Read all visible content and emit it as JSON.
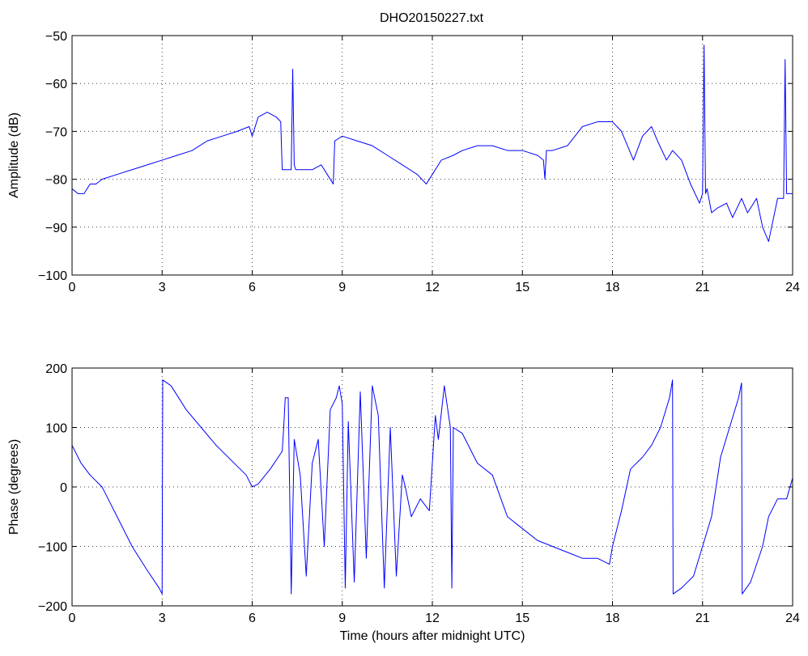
{
  "title": "DHO20150227.txt",
  "chart_data": [
    {
      "type": "line",
      "title": "DHO20150227.txt",
      "xlabel": "",
      "ylabel": "Amplitude (dB)",
      "xlim": [
        0,
        24
      ],
      "ylim": [
        -100,
        -50
      ],
      "xticks": [
        0,
        3,
        6,
        9,
        12,
        15,
        18,
        21,
        24
      ],
      "yticks": [
        -100,
        -90,
        -80,
        -70,
        -60,
        -50
      ],
      "grid": true,
      "line_color": "#0000ff",
      "series": [
        {
          "x": [
            0,
            0.2,
            0.4,
            0.6,
            0.8,
            1.0,
            1.5,
            2.0,
            2.5,
            3.0,
            3.5,
            4.0,
            4.5,
            5.0,
            5.5,
            5.9,
            6.0,
            6.2,
            6.5,
            6.8,
            6.95,
            7.0,
            7.1,
            7.3,
            7.35,
            7.4,
            7.45,
            7.6,
            8.0,
            8.3,
            8.5,
            8.7,
            8.75,
            9.0,
            9.5,
            10.0,
            10.5,
            11.0,
            11.5,
            11.8,
            12.0,
            12.3,
            12.7,
            13.0,
            13.5,
            14.0,
            14.5,
            15.0,
            15.5,
            15.7,
            15.75,
            15.8,
            16.0,
            16.5,
            17.0,
            17.5,
            17.8,
            18.0,
            18.3,
            18.7,
            19.0,
            19.3,
            19.5,
            19.8,
            20.0,
            20.3,
            20.6,
            20.9,
            21.0,
            21.05,
            21.1,
            21.15,
            21.3,
            21.5,
            21.8,
            22.0,
            22.3,
            22.5,
            22.8,
            23.0,
            23.2,
            23.5,
            23.7,
            23.75,
            23.8,
            24.0
          ],
          "y": [
            -82,
            -83,
            -83,
            -81,
            -81,
            -80,
            -79,
            -78,
            -77,
            -76,
            -75,
            -74,
            -72,
            -71,
            -70,
            -69,
            -71,
            -67,
            -66,
            -67,
            -68,
            -78,
            -78,
            -78,
            -57,
            -77,
            -78,
            -78,
            -78,
            -77,
            -79,
            -81,
            -72,
            -71,
            -72,
            -73,
            -75,
            -77,
            -79,
            -81,
            -79,
            -76,
            -75,
            -74,
            -73,
            -73,
            -74,
            -74,
            -75,
            -76,
            -80,
            -74,
            -74,
            -73,
            -69,
            -68,
            -68,
            -68,
            -70,
            -76,
            -71,
            -69,
            -72,
            -76,
            -74,
            -76,
            -81,
            -85,
            -83,
            -52,
            -83,
            -82,
            -87,
            -86,
            -85,
            -88,
            -84,
            -87,
            -84,
            -90,
            -93,
            -84,
            -84,
            -55,
            -83,
            -83
          ]
        }
      ]
    },
    {
      "type": "line",
      "title": "",
      "xlabel": "Time (hours after midnight UTC)",
      "ylabel": "Phase (degrees)",
      "xlim": [
        0,
        24
      ],
      "ylim": [
        -200,
        200
      ],
      "xticks": [
        0,
        3,
        6,
        9,
        12,
        15,
        18,
        21,
        24
      ],
      "yticks": [
        -200,
        -100,
        0,
        100,
        200
      ],
      "grid": true,
      "line_color": "#0000ff",
      "series": [
        {
          "x": [
            0,
            0.3,
            0.6,
            1.0,
            1.5,
            2.0,
            2.5,
            2.9,
            3.0,
            3.02,
            3.3,
            3.8,
            4.3,
            4.8,
            5.3,
            5.8,
            6.0,
            6.2,
            6.6,
            7.0,
            7.05,
            7.1,
            7.2,
            7.3,
            7.4,
            7.6,
            7.8,
            8.0,
            8.2,
            8.4,
            8.6,
            8.8,
            8.9,
            9.0,
            9.1,
            9.2,
            9.4,
            9.6,
            9.8,
            10.0,
            10.2,
            10.4,
            10.6,
            10.8,
            11.0,
            11.1,
            11.3,
            11.6,
            11.9,
            12.1,
            12.2,
            12.4,
            12.6,
            12.65,
            12.7,
            13.0,
            13.5,
            14.0,
            14.5,
            15.0,
            15.5,
            16.0,
            16.5,
            17.0,
            17.5,
            17.9,
            18.0,
            18.3,
            18.6,
            19.0,
            19.3,
            19.6,
            19.9,
            20.0,
            20.02,
            20.3,
            20.7,
            21.0,
            21.3,
            21.6,
            21.9,
            22.2,
            22.3,
            22.32,
            22.6,
            23.0,
            23.2,
            23.5,
            23.8,
            24.0
          ],
          "y": [
            70,
            40,
            20,
            0,
            -50,
            -100,
            -140,
            -170,
            -180,
            180,
            170,
            130,
            100,
            70,
            45,
            20,
            0,
            5,
            30,
            60,
            100,
            150,
            150,
            -180,
            80,
            20,
            -150,
            40,
            80,
            -100,
            130,
            150,
            170,
            140,
            -170,
            110,
            -160,
            160,
            -120,
            170,
            120,
            -170,
            100,
            -150,
            20,
            0,
            -50,
            -20,
            -40,
            120,
            80,
            170,
            100,
            -170,
            100,
            90,
            40,
            20,
            -50,
            -70,
            -90,
            -100,
            -110,
            -120,
            -120,
            -130,
            -100,
            -40,
            30,
            50,
            70,
            100,
            150,
            180,
            -180,
            -170,
            -150,
            -100,
            -50,
            50,
            100,
            150,
            175,
            -180,
            -160,
            -100,
            -50,
            -20,
            -20,
            15
          ]
        }
      ]
    }
  ]
}
